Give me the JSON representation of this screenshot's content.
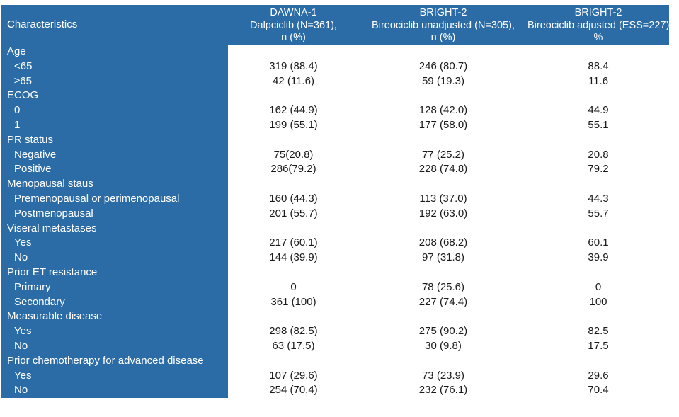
{
  "colors": {
    "header_blue": "#2B6CA7",
    "header_border_blue": "#1E5A8F",
    "header_text": "#FFFFFF",
    "body_text": "#1A1A1A"
  },
  "table": {
    "characteristics_label": "Characteristics",
    "columns": [
      {
        "study": "DAWNA-1",
        "arm": "Dalpciclib (N=361),",
        "unit": "n (%)"
      },
      {
        "study": "BRIGHT-2",
        "arm": "Bireociclib unadjusted (N=305),",
        "unit": "n (%)"
      },
      {
        "study": "BRIGHT-2",
        "arm": "Bireociclib adjusted (ESS=227),",
        "unit": "%"
      }
    ],
    "rows": [
      {
        "label": "Age",
        "indent": false,
        "values": [
          "",
          "",
          ""
        ]
      },
      {
        "label": "<65",
        "indent": true,
        "values": [
          "319 (88.4)",
          "246 (80.7)",
          "88.4"
        ]
      },
      {
        "label": "≥65",
        "indent": true,
        "values": [
          "42 (11.6)",
          "59 (19.3)",
          "11.6"
        ]
      },
      {
        "label": "ECOG",
        "indent": false,
        "values": [
          "",
          "",
          ""
        ]
      },
      {
        "label": "0",
        "indent": true,
        "values": [
          "162 (44.9)",
          "128 (42.0)",
          "44.9"
        ]
      },
      {
        "label": "1",
        "indent": true,
        "values": [
          "199 (55.1)",
          "177 (58.0)",
          "55.1"
        ]
      },
      {
        "label": "PR status",
        "indent": false,
        "values": [
          "",
          "",
          ""
        ]
      },
      {
        "label": "Negative",
        "indent": true,
        "values": [
          "75(20.8)",
          "77 (25.2)",
          "20.8"
        ]
      },
      {
        "label": "Positive",
        "indent": true,
        "values": [
          "286(79.2)",
          "228 (74.8)",
          "79.2"
        ]
      },
      {
        "label": "Menopausal staus",
        "indent": false,
        "values": [
          "",
          "",
          ""
        ]
      },
      {
        "label": "Premenopausal or perimenopausal",
        "indent": true,
        "values": [
          "160 (44.3)",
          "113 (37.0)",
          "44.3"
        ]
      },
      {
        "label": "Postmenopausal",
        "indent": true,
        "values": [
          "201 (55.7)",
          "192 (63.0)",
          "55.7"
        ]
      },
      {
        "label": "Viseral metastases",
        "indent": false,
        "values": [
          "",
          "",
          ""
        ]
      },
      {
        "label": "Yes",
        "indent": true,
        "values": [
          "217 (60.1)",
          "208 (68.2)",
          "60.1"
        ]
      },
      {
        "label": "No",
        "indent": true,
        "values": [
          "144 (39.9)",
          "97 (31.8)",
          "39.9"
        ]
      },
      {
        "label": "Prior ET resistance",
        "indent": false,
        "values": [
          "",
          "",
          ""
        ]
      },
      {
        "label": "Primary",
        "indent": true,
        "values": [
          "0",
          "78 (25.6)",
          "0"
        ]
      },
      {
        "label": "Secondary",
        "indent": true,
        "values": [
          "361 (100)",
          "227 (74.4)",
          "100"
        ]
      },
      {
        "label": "Measurable disease",
        "indent": false,
        "values": [
          "",
          "",
          ""
        ]
      },
      {
        "label": "Yes",
        "indent": true,
        "values": [
          "298 (82.5)",
          "275 (90.2)",
          "82.5"
        ]
      },
      {
        "label": "No",
        "indent": true,
        "values": [
          "63 (17.5)",
          "30 (9.8)",
          "17.5"
        ]
      },
      {
        "label": "Prior chemotherapy for advanced disease",
        "indent": false,
        "values": [
          "",
          "",
          ""
        ]
      },
      {
        "label": "Yes",
        "indent": true,
        "values": [
          "107 (29.6)",
          "73 (23.9)",
          "29.6"
        ]
      },
      {
        "label": "No",
        "indent": true,
        "values": [
          "254 (70.4)",
          "232 (76.1)",
          "70.4"
        ]
      }
    ]
  }
}
